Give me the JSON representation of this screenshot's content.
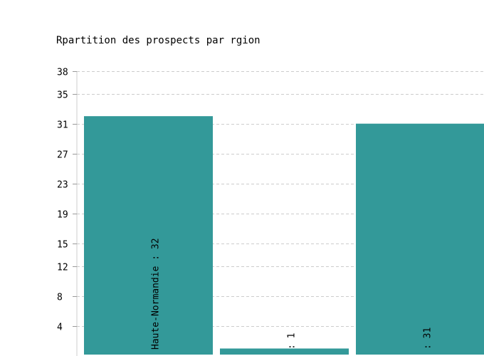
{
  "chart_data": {
    "type": "bar",
    "title": "Rpartition des prospects par rgion",
    "categories": [
      "Haute-Normandie",
      "",
      ""
    ],
    "values": [
      32,
      1,
      31
    ],
    "bar_labels": [
      "Haute-Normandie : 32",
      ": 1",
      ": 31"
    ],
    "yticks": [
      4,
      8,
      12,
      15,
      19,
      23,
      27,
      31,
      35,
      38
    ],
    "ylim": [
      0,
      38
    ],
    "xlabel": "",
    "ylabel": "",
    "grid": true,
    "bar_color": "#339999",
    "grid_color": "#cccccc"
  }
}
